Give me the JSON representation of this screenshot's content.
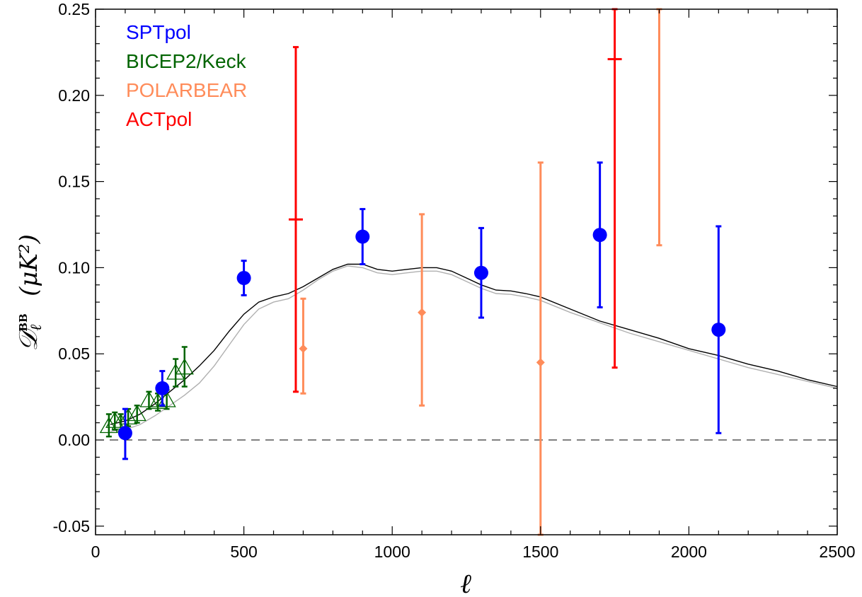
{
  "chart_data": {
    "type": "scatter",
    "title": "",
    "xlabel": "ℓ",
    "ylabel": {
      "symbol": "𝒟",
      "subscript": "ℓ",
      "superscript": "BB",
      "units": "(μK²)"
    },
    "xlim": [
      0,
      2500
    ],
    "ylim": [
      -0.055,
      0.25
    ],
    "x_ticks": {
      "major": [
        0,
        500,
        1000,
        1500,
        2000,
        2500
      ],
      "labels": [
        "0",
        "500",
        "1000",
        "1500",
        "2000",
        "2500"
      ],
      "minor_step": 100
    },
    "y_ticks": {
      "major": [
        -0.05,
        0.0,
        0.05,
        0.1,
        0.15,
        0.2,
        0.25
      ],
      "labels": [
        "-0.05",
        "0.00",
        "0.05",
        "0.10",
        "0.15",
        "0.20",
        "0.25"
      ],
      "minor_step": 0.01
    },
    "grid": false,
    "legend": "top-left",
    "reference_line": {
      "y": 0,
      "style": "dashed",
      "color": "#000000"
    },
    "series": [
      {
        "name": "SPTpol",
        "color": "#0000ff",
        "marker": "filled-circle",
        "points": [
          {
            "x": 100,
            "y": 0.004,
            "low": -0.011,
            "high": 0.018
          },
          {
            "x": 225,
            "y": 0.03,
            "low": 0.02,
            "high": 0.04
          },
          {
            "x": 500,
            "y": 0.094,
            "low": 0.084,
            "high": 0.104
          },
          {
            "x": 900,
            "y": 0.118,
            "low": 0.102,
            "high": 0.134
          },
          {
            "x": 1300,
            "y": 0.097,
            "low": 0.071,
            "high": 0.123
          },
          {
            "x": 1700,
            "y": 0.119,
            "low": 0.077,
            "high": 0.161
          },
          {
            "x": 2100,
            "y": 0.064,
            "low": 0.004,
            "high": 0.124
          }
        ]
      },
      {
        "name": "BICEP2/Keck",
        "color": "#006400",
        "marker": "open-triangle",
        "points": [
          {
            "x": 45,
            "y": 0.008,
            "low": 0.002,
            "high": 0.015
          },
          {
            "x": 65,
            "y": 0.011,
            "low": 0.006,
            "high": 0.016
          },
          {
            "x": 85,
            "y": 0.01,
            "low": 0.005,
            "high": 0.015
          },
          {
            "x": 110,
            "y": 0.013,
            "low": 0.008,
            "high": 0.018
          },
          {
            "x": 140,
            "y": 0.015,
            "low": 0.01,
            "high": 0.02
          },
          {
            "x": 180,
            "y": 0.023,
            "low": 0.018,
            "high": 0.028
          },
          {
            "x": 210,
            "y": 0.022,
            "low": 0.017,
            "high": 0.027
          },
          {
            "x": 240,
            "y": 0.023,
            "low": 0.018,
            "high": 0.029
          },
          {
            "x": 270,
            "y": 0.039,
            "low": 0.031,
            "high": 0.047
          },
          {
            "x": 300,
            "y": 0.042,
            "low": 0.031,
            "high": 0.054
          }
        ]
      },
      {
        "name": "POLARBEAR",
        "color": "#ff8c5a",
        "marker": "filled-diamond",
        "points": [
          {
            "x": 700,
            "y": 0.053,
            "low": 0.027,
            "high": 0.082
          },
          {
            "x": 1100,
            "y": 0.074,
            "low": 0.02,
            "high": 0.131
          },
          {
            "x": 1500,
            "y": 0.045,
            "low": -0.055,
            "high": 0.161
          },
          {
            "x": 1900,
            "y": null,
            "low": 0.113,
            "high": 0.25
          }
        ]
      },
      {
        "name": "ACTpol",
        "color": "#ff0000",
        "marker": "plus",
        "points": [
          {
            "x": 675,
            "y": 0.128,
            "low": 0.028,
            "high": 0.228
          },
          {
            "x": 1750,
            "y": 0.221,
            "low": 0.042,
            "high": 0.25
          }
        ]
      }
    ],
    "model_curves": [
      {
        "color": "#000000",
        "x": [
          50,
          100,
          150,
          200,
          250,
          300,
          350,
          400,
          450,
          500,
          550,
          600,
          650,
          700,
          750,
          800,
          850,
          900,
          950,
          1000,
          1050,
          1100,
          1150,
          1200,
          1250,
          1300,
          1350,
          1400,
          1450,
          1500,
          1600,
          1700,
          1800,
          1900,
          2000,
          2100,
          2200,
          2300,
          2400,
          2500
        ],
        "y": [
          0.009,
          0.011,
          0.015,
          0.021,
          0.028,
          0.035,
          0.043,
          0.052,
          0.063,
          0.073,
          0.08,
          0.083,
          0.085,
          0.089,
          0.094,
          0.099,
          0.102,
          0.102,
          0.099,
          0.098,
          0.099,
          0.1,
          0.1,
          0.098,
          0.094,
          0.09,
          0.087,
          0.0865,
          0.085,
          0.083,
          0.076,
          0.069,
          0.064,
          0.059,
          0.053,
          0.049,
          0.044,
          0.04,
          0.035,
          0.031
        ]
      },
      {
        "color": "#b0b0b0",
        "x": [
          50,
          100,
          150,
          200,
          250,
          300,
          350,
          400,
          450,
          500,
          550,
          600,
          650,
          700,
          750,
          800,
          850,
          900,
          950,
          1000,
          1050,
          1100,
          1150,
          1200,
          1250,
          1300,
          1350,
          1400,
          1450,
          1500,
          1600,
          1700,
          1800,
          1900,
          2000,
          2100,
          2200,
          2300,
          2400,
          2500
        ],
        "y": [
          0.005,
          0.006,
          0.009,
          0.014,
          0.02,
          0.026,
          0.033,
          0.043,
          0.055,
          0.067,
          0.076,
          0.08,
          0.082,
          0.087,
          0.093,
          0.098,
          0.101,
          0.1,
          0.097,
          0.096,
          0.097,
          0.098,
          0.098,
          0.096,
          0.092,
          0.088,
          0.085,
          0.0845,
          0.083,
          0.081,
          0.074,
          0.068,
          0.062,
          0.057,
          0.052,
          0.047,
          0.042,
          0.038,
          0.034,
          0.03
        ]
      }
    ]
  }
}
